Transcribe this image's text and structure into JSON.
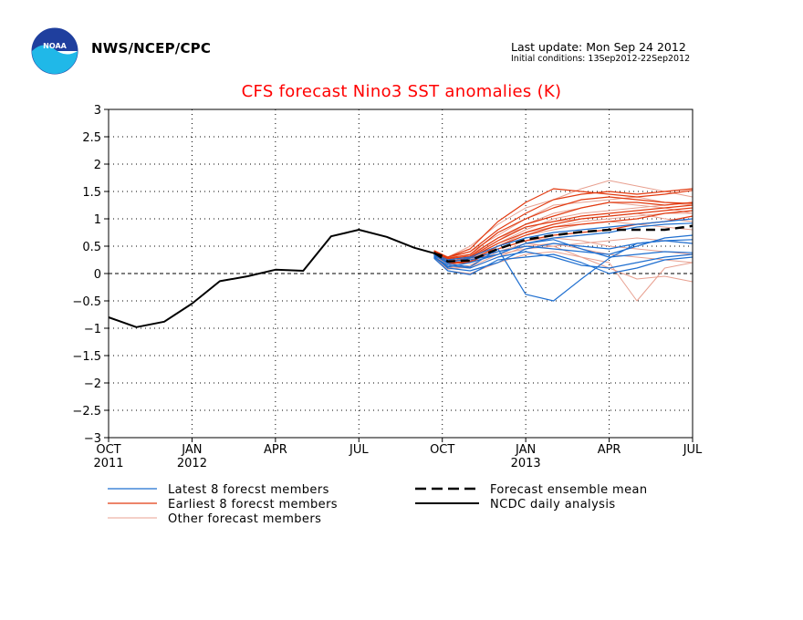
{
  "header": {
    "agency": "NWS/NCEP/CPC",
    "last_update": "Last update: Mon Sep 24 2012",
    "initial_conditions": "Initial conditions: 13Sep2012-22Sep2012",
    "logo_text": "NOAA"
  },
  "colors": {
    "title": "#ff0000",
    "latest": "#1f6fd0",
    "earliest": "#e23a10",
    "other": "#e8a090",
    "analysis": "#000000"
  },
  "chart_data": {
    "type": "line",
    "title": "CFS forecast Nino3 SST anomalies (K)",
    "xlabel": "",
    "ylabel": "",
    "ylim": [
      -3,
      3
    ],
    "yticks": [
      "3",
      "2.5",
      "2",
      "1.5",
      "1",
      "0.5",
      "0",
      "−0.5",
      "−1",
      "−1.5",
      "−2",
      "−2.5",
      "−3"
    ],
    "xticks": [
      {
        "month": "OCT",
        "year": "2011"
      },
      {
        "month": "JAN",
        "year": "2012"
      },
      {
        "month": "APR",
        "year": ""
      },
      {
        "month": "JUL",
        "year": ""
      },
      {
        "month": "OCT",
        "year": ""
      },
      {
        "month": "JAN",
        "year": "2013"
      },
      {
        "month": "APR",
        "year": ""
      },
      {
        "month": "JUL",
        "year": ""
      }
    ],
    "x_unit": "months since Oct 2011",
    "grid": true,
    "zero_line": true,
    "legend": [
      {
        "label": "Latest 8 forecst members",
        "style": "latest"
      },
      {
        "label": "Earliest 8 forecst members",
        "style": "earliest"
      },
      {
        "label": "Other forecast members",
        "style": "other"
      },
      {
        "label": "Forecast ensemble mean",
        "style": "mean"
      },
      {
        "label": "NCDC daily analysis",
        "style": "analysis"
      }
    ],
    "analysis": {
      "x": [
        0,
        1,
        2,
        3,
        4,
        5,
        6,
        7,
        8,
        9,
        10,
        11,
        12
      ],
      "y": [
        -0.8,
        -0.98,
        -0.88,
        -0.55,
        -0.14,
        -0.05,
        0.07,
        0.05,
        0.68,
        0.8,
        0.67,
        0.47,
        0.33
      ]
    },
    "ensemble_mean": {
      "x": [
        11.7,
        12.2,
        13,
        14,
        15,
        16,
        17,
        18,
        19,
        20,
        21
      ],
      "y": [
        0.38,
        0.22,
        0.24,
        0.45,
        0.62,
        0.7,
        0.76,
        0.8,
        0.8,
        0.8,
        0.87
      ]
    },
    "latest_members": [
      {
        "x": [
          11.7,
          12.2,
          13,
          14,
          15,
          16,
          17,
          18,
          19,
          20,
          21
        ],
        "y": [
          0.35,
          0.18,
          0.12,
          0.45,
          -0.38,
          -0.5,
          -0.1,
          0.28,
          0.55,
          0.6,
          0.55
        ]
      },
      {
        "x": [
          11.7,
          12.2,
          13,
          14,
          15,
          16,
          17,
          18,
          19,
          20,
          21
        ],
        "y": [
          0.3,
          0.12,
          0.2,
          0.35,
          0.55,
          0.62,
          0.45,
          0.3,
          0.35,
          0.4,
          0.38
        ]
      },
      {
        "x": [
          11.7,
          12.2,
          13,
          14,
          15,
          16,
          17,
          18,
          19,
          20,
          21
        ],
        "y": [
          0.28,
          0.05,
          -0.02,
          0.25,
          0.3,
          0.35,
          0.2,
          0.0,
          0.1,
          0.25,
          0.3
        ]
      },
      {
        "x": [
          11.7,
          12.2,
          13,
          14,
          15,
          16,
          17,
          18,
          19,
          20,
          21
        ],
        "y": [
          0.33,
          0.2,
          0.28,
          0.4,
          0.5,
          0.45,
          0.4,
          0.35,
          0.5,
          0.65,
          0.7
        ]
      },
      {
        "x": [
          11.7,
          12.2,
          13,
          14,
          15,
          16,
          17,
          18,
          19,
          20,
          21
        ],
        "y": [
          0.36,
          0.25,
          0.3,
          0.5,
          0.65,
          0.75,
          0.8,
          0.85,
          0.9,
          0.95,
          1.0
        ]
      },
      {
        "x": [
          11.7,
          12.2,
          13,
          14,
          15,
          16,
          17,
          18,
          19,
          20,
          21
        ],
        "y": [
          0.3,
          0.15,
          0.1,
          0.3,
          0.4,
          0.3,
          0.15,
          0.1,
          0.2,
          0.3,
          0.35
        ]
      },
      {
        "x": [
          11.7,
          12.2,
          13,
          14,
          15,
          16,
          17,
          18,
          19,
          20,
          21
        ],
        "y": [
          0.34,
          0.22,
          0.25,
          0.35,
          0.55,
          0.65,
          0.7,
          0.75,
          0.85,
          0.9,
          0.92
        ]
      },
      {
        "x": [
          11.7,
          12.2,
          13,
          14,
          15,
          16,
          17,
          18,
          19,
          20,
          21
        ],
        "y": [
          0.32,
          0.1,
          0.05,
          0.2,
          0.45,
          0.55,
          0.5,
          0.45,
          0.55,
          0.6,
          0.62
        ]
      }
    ],
    "earliest_members": [
      {
        "x": [
          11.7,
          12.2,
          13,
          14,
          15,
          16,
          17,
          18,
          19,
          20,
          21
        ],
        "y": [
          0.42,
          0.3,
          0.45,
          0.95,
          1.3,
          1.55,
          1.5,
          1.45,
          1.4,
          1.45,
          1.52
        ]
      },
      {
        "x": [
          11.7,
          12.2,
          13,
          14,
          15,
          16,
          17,
          18,
          19,
          20,
          21
        ],
        "y": [
          0.4,
          0.28,
          0.35,
          0.75,
          1.0,
          1.2,
          1.35,
          1.4,
          1.35,
          1.3,
          1.28
        ]
      },
      {
        "x": [
          11.7,
          12.2,
          13,
          14,
          15,
          16,
          17,
          18,
          19,
          20,
          21
        ],
        "y": [
          0.38,
          0.25,
          0.3,
          0.6,
          0.85,
          0.95,
          1.05,
          1.1,
          1.15,
          1.2,
          1.25
        ]
      },
      {
        "x": [
          11.7,
          12.2,
          13,
          14,
          15,
          16,
          17,
          18,
          19,
          20,
          21
        ],
        "y": [
          0.36,
          0.2,
          0.22,
          0.5,
          0.7,
          0.85,
          0.9,
          0.95,
          1.0,
          1.1,
          1.15
        ]
      },
      {
        "x": [
          11.7,
          12.2,
          13,
          14,
          15,
          16,
          17,
          18,
          19,
          20,
          21
        ],
        "y": [
          0.4,
          0.3,
          0.4,
          0.8,
          1.1,
          1.35,
          1.45,
          1.5,
          1.45,
          1.5,
          1.55
        ]
      },
      {
        "x": [
          11.7,
          12.2,
          13,
          14,
          15,
          16,
          17,
          18,
          19,
          20,
          21
        ],
        "y": [
          0.35,
          0.18,
          0.2,
          0.45,
          0.6,
          0.7,
          0.75,
          0.8,
          0.9,
          0.95,
          1.05
        ]
      },
      {
        "x": [
          11.7,
          12.2,
          13,
          14,
          15,
          16,
          17,
          18,
          19,
          20,
          21
        ],
        "y": [
          0.37,
          0.22,
          0.28,
          0.55,
          0.75,
          0.9,
          1.0,
          1.05,
          1.1,
          1.15,
          1.2
        ]
      },
      {
        "x": [
          11.7,
          12.2,
          13,
          14,
          15,
          16,
          17,
          18,
          19,
          20,
          21
        ],
        "y": [
          0.39,
          0.27,
          0.32,
          0.65,
          0.9,
          1.05,
          1.2,
          1.3,
          1.3,
          1.25,
          1.3
        ]
      }
    ],
    "other_members": [
      {
        "x": [
          11.7,
          12.2,
          13,
          14,
          15,
          16,
          17,
          18,
          19,
          20,
          21
        ],
        "y": [
          0.4,
          0.3,
          0.5,
          0.9,
          1.2,
          1.35,
          1.55,
          1.7,
          1.6,
          1.5,
          1.4
        ]
      },
      {
        "x": [
          11.7,
          12.2,
          13,
          14,
          15,
          16,
          17,
          18,
          19,
          20,
          21
        ],
        "y": [
          0.35,
          0.2,
          0.3,
          0.6,
          0.9,
          1.1,
          1.2,
          1.3,
          1.25,
          1.2,
          1.1
        ]
      },
      {
        "x": [
          11.7,
          12.2,
          13,
          14,
          15,
          16,
          17,
          18,
          19,
          20,
          21
        ],
        "y": [
          0.3,
          0.1,
          0.15,
          0.4,
          0.55,
          0.5,
          0.3,
          0.2,
          -0.5,
          0.1,
          0.2
        ]
      },
      {
        "x": [
          11.7,
          12.2,
          13,
          14,
          15,
          16,
          17,
          18,
          19,
          20,
          21
        ],
        "y": [
          0.33,
          0.15,
          0.25,
          0.5,
          0.7,
          0.8,
          0.9,
          0.95,
          0.9,
          0.85,
          0.8
        ]
      },
      {
        "x": [
          11.7,
          12.2,
          13,
          14,
          15,
          16,
          17,
          18,
          19,
          20,
          21
        ],
        "y": [
          0.3,
          0.05,
          0.0,
          0.2,
          0.35,
          0.4,
          0.3,
          0.1,
          -0.1,
          -0.05,
          -0.15
        ]
      },
      {
        "x": [
          11.7,
          12.2,
          13,
          14,
          15,
          16,
          17,
          18,
          19,
          20,
          21
        ],
        "y": [
          0.38,
          0.28,
          0.4,
          0.7,
          1.0,
          1.25,
          1.3,
          1.35,
          1.4,
          1.3,
          1.25
        ]
      },
      {
        "x": [
          11.7,
          12.2,
          13,
          14,
          15,
          16,
          17,
          18,
          19,
          20,
          21
        ],
        "y": [
          0.34,
          0.18,
          0.22,
          0.45,
          0.6,
          0.65,
          0.6,
          0.5,
          0.45,
          0.4,
          0.35
        ]
      },
      {
        "x": [
          11.7,
          12.2,
          13,
          14,
          15,
          16,
          17,
          18,
          19,
          20,
          21
        ],
        "y": [
          0.36,
          0.22,
          0.35,
          0.65,
          0.85,
          0.95,
          1.0,
          1.05,
          1.1,
          1.0,
          0.95
        ]
      },
      {
        "x": [
          11.7,
          12.2,
          13,
          14,
          15,
          16,
          17,
          18,
          19,
          20,
          21
        ],
        "y": [
          0.32,
          0.12,
          0.1,
          0.3,
          0.5,
          0.55,
          0.45,
          0.35,
          0.3,
          0.25,
          0.2
        ]
      },
      {
        "x": [
          11.7,
          12.2,
          13,
          14,
          15,
          16,
          17,
          18,
          19,
          20,
          21
        ],
        "y": [
          0.37,
          0.25,
          0.3,
          0.55,
          0.8,
          1.0,
          1.1,
          1.15,
          1.2,
          1.25,
          1.3
        ]
      },
      {
        "x": [
          11.7,
          12.2,
          13,
          14,
          15,
          16,
          17,
          18,
          19,
          20,
          21
        ],
        "y": [
          0.3,
          0.08,
          0.12,
          0.35,
          0.45,
          0.5,
          0.55,
          0.6,
          0.65,
          0.6,
          0.55
        ]
      },
      {
        "x": [
          11.7,
          12.2,
          13,
          14,
          15,
          16,
          17,
          18,
          19,
          20,
          21
        ],
        "y": [
          0.35,
          0.2,
          0.28,
          0.5,
          0.75,
          0.85,
          0.95,
          1.0,
          1.05,
          1.1,
          1.1
        ]
      }
    ]
  }
}
